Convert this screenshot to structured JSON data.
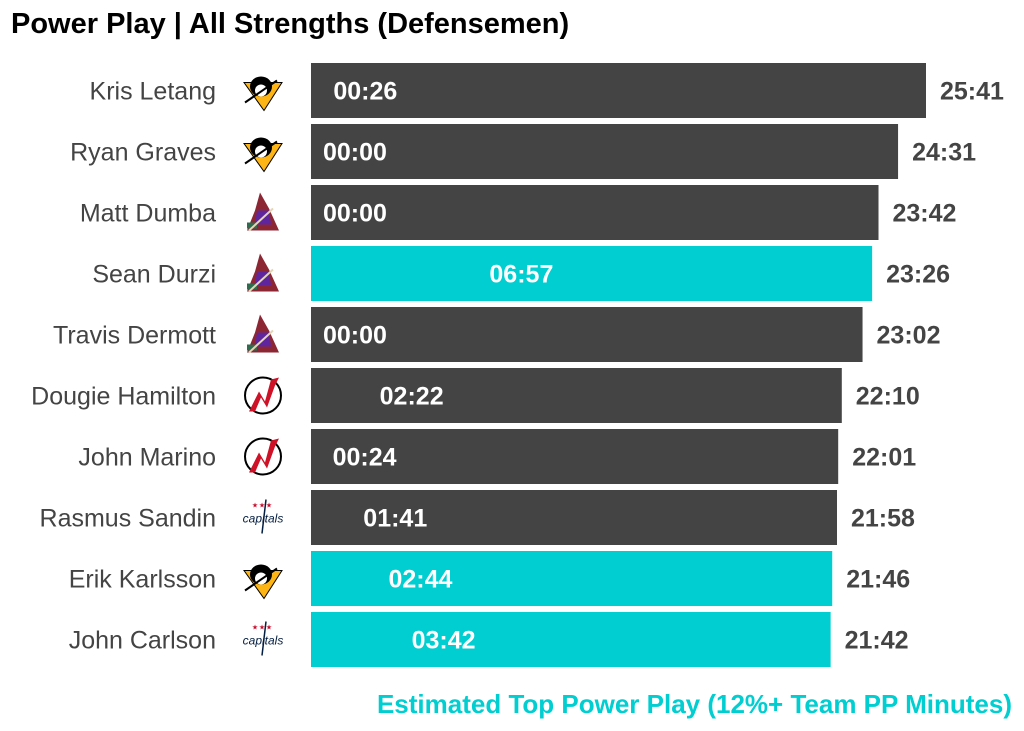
{
  "title": "Power Play | All Strengths (Defensemen)",
  "footnote": "Estimated Top Power Play (12%+ Team PP Minutes)",
  "colors": {
    "default_bar": "#444444",
    "top_pp_bar": "#00CED1",
    "footnote": "#00CED1",
    "name_text": "#444444",
    "total_text": "#444444",
    "inner_text": "#ffffff"
  },
  "logo_text": {
    "capitals": "capitals"
  },
  "chart_data": {
    "type": "bar",
    "orientation": "horizontal",
    "title": "Power Play | All Strengths (Defensemen)",
    "value_unit": "mm:ss",
    "categories": [
      "Kris Letang",
      "Ryan Graves",
      "Matt Dumba",
      "Sean Durzi",
      "Travis Dermott",
      "Dougie Hamilton",
      "John Marino",
      "Rasmus Sandin",
      "Erik Karlsson",
      "John Carlson"
    ],
    "teams": [
      "penguins",
      "penguins",
      "coyotes",
      "coyotes",
      "coyotes",
      "devils",
      "devils",
      "capitals",
      "penguins",
      "capitals"
    ],
    "total_labels": [
      "25:41",
      "24:31",
      "23:42",
      "23:26",
      "23:02",
      "22:10",
      "22:01",
      "21:58",
      "21:46",
      "21:42"
    ],
    "total_seconds": [
      1541,
      1471,
      1422,
      1406,
      1382,
      1330,
      1321,
      1318,
      1306,
      1302
    ],
    "pp_labels": [
      "00:26",
      "00:00",
      "00:00",
      "06:57",
      "00:00",
      "02:22",
      "00:24",
      "01:41",
      "02:44",
      "03:42"
    ],
    "pp_seconds": [
      26,
      0,
      0,
      417,
      0,
      142,
      24,
      101,
      164,
      222
    ],
    "top_power_play": [
      false,
      false,
      false,
      true,
      false,
      false,
      false,
      false,
      true,
      true
    ],
    "legend": "Estimated Top Power Play (12%+ Team PP Minutes)",
    "xlim": [
      0,
      1541
    ]
  }
}
